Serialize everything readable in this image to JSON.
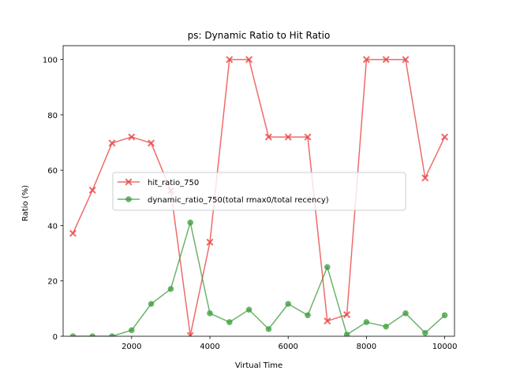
{
  "chart_data": {
    "type": "line",
    "title": "ps: Dynamic Ratio to Hit Ratio",
    "xlabel": "Virtual Time",
    "ylabel": "Ratio (%)",
    "xlim": [
      250,
      10250
    ],
    "ylim": [
      0,
      105
    ],
    "xticks": [
      2000,
      4000,
      6000,
      8000,
      10000
    ],
    "yticks": [
      0,
      20,
      40,
      60,
      80,
      100
    ],
    "grid": false,
    "legend_position": "center-left",
    "x": [
      500,
      1000,
      1500,
      2000,
      2500,
      3000,
      3500,
      4000,
      4500,
      5000,
      5500,
      6000,
      6500,
      7000,
      7500,
      8000,
      8500,
      9000,
      9500,
      10000
    ],
    "series": [
      {
        "name": "hit_ratio_750",
        "color": "#e8393a",
        "marker": "x",
        "values": [
          37.2,
          52.8,
          69.8,
          72.0,
          69.8,
          52.6,
          0.3,
          34.0,
          100,
          100,
          72.0,
          72.0,
          72.0,
          5.5,
          7.8,
          100,
          100,
          100,
          57.2,
          72.0
        ]
      },
      {
        "name": "dynamic_ratio_750(total rmax0/total recency)",
        "color": "#3a9a3a",
        "marker": "o",
        "values": [
          0.0,
          0.0,
          0.0,
          2.2,
          11.7,
          17.1,
          41.1,
          8.3,
          5.1,
          9.6,
          2.6,
          11.7,
          7.6,
          25.0,
          0.6,
          5.1,
          3.5,
          8.3,
          1.2,
          7.6
        ]
      }
    ]
  }
}
